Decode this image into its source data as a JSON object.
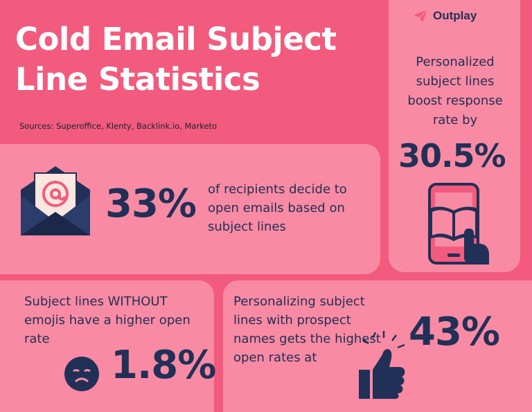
{
  "title_line1": "Cold Email Subject",
  "title_line2": "Line Statistics",
  "sources": "Sources: Superoffice, Klenty, Backlink.io, Marketo",
  "brand": "Outplay",
  "stat_personalized": {
    "text": "Personalized subject lines boost response rate by",
    "value": "30.5%",
    "icon": "tablet-book-icon"
  },
  "stat_recipients": {
    "value": "33%",
    "text": "of recipients decide to open emails based on subject lines",
    "icon": "envelope-at-icon"
  },
  "stat_emojis": {
    "text": "Subject lines WITHOUT emojis have a higher open rate",
    "value": "1.8%",
    "icon": "sad-face-icon"
  },
  "stat_names": {
    "text": "Personalizing subject lines with prospect names gets the highest open rates at",
    "value": "43%",
    "icon": "thumbs-up-icon"
  },
  "colors": {
    "background": "#f25b7d",
    "card": "#f98aa3",
    "navy": "#213057",
    "brand_icon": "#f05a78"
  }
}
